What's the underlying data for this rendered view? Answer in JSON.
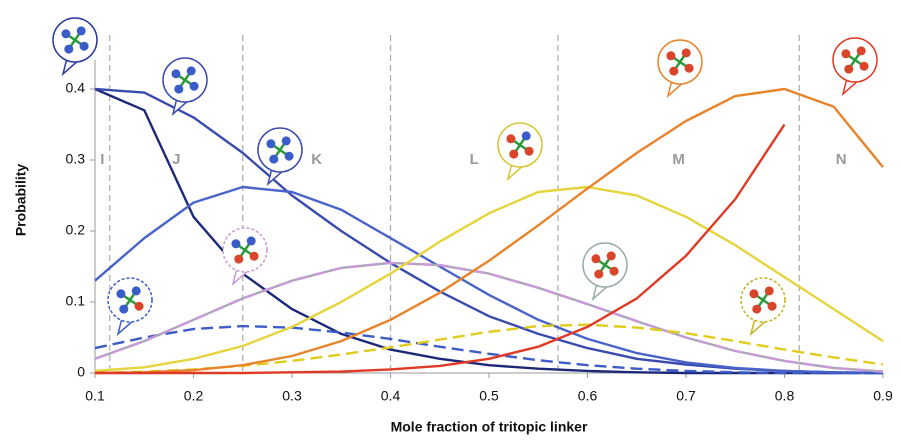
{
  "chart_data": {
    "type": "line",
    "x_label": "Mole fraction of tritopic linker",
    "y_label": "Probability",
    "x": [
      0.1,
      0.15,
      0.2,
      0.25,
      0.3,
      0.35,
      0.4,
      0.45,
      0.5,
      0.55,
      0.6,
      0.65,
      0.7,
      0.75,
      0.8,
      0.85,
      0.9
    ],
    "xlim": [
      0.1,
      0.9
    ],
    "ylim": [
      0,
      0.45
    ],
    "xticks": [
      0.1,
      0.2,
      0.3,
      0.4,
      0.5,
      0.6,
      0.7,
      0.8,
      0.9
    ],
    "yticks": [
      0,
      0.1,
      0.2,
      0.3,
      0.4
    ],
    "regions": [
      "I",
      "J",
      "K",
      "L",
      "M",
      "N"
    ],
    "boundaries": [
      0.115,
      0.25,
      0.4,
      0.57,
      0.815
    ],
    "series": [
      {
        "color": "#1e2878",
        "values": [
          0.4,
          0.37,
          0.22,
          0.14,
          0.09,
          0.055,
          0.033,
          0.02,
          0.011,
          0.006,
          0.003,
          0.001,
          0,
          0,
          0,
          0,
          0
        ]
      },
      {
        "color": "#3a4bae",
        "values": [
          0.4,
          0.395,
          0.36,
          0.31,
          0.25,
          0.2,
          0.155,
          0.115,
          0.08,
          0.055,
          0.035,
          0.02,
          0.012,
          0.006,
          0.003,
          0.001,
          0
        ]
      },
      {
        "color": "#4a63c8",
        "values": [
          0.13,
          0.19,
          0.24,
          0.262,
          0.255,
          0.23,
          0.19,
          0.15,
          0.11,
          0.075,
          0.048,
          0.028,
          0.015,
          0.007,
          0.003,
          0.001,
          0
        ]
      },
      {
        "color": "#3c5cc8",
        "dash": true,
        "values": [
          0.035,
          0.05,
          0.062,
          0.066,
          0.064,
          0.057,
          0.048,
          0.037,
          0.027,
          0.018,
          0.011,
          0.006,
          0.003,
          0.001,
          0,
          0,
          0
        ]
      },
      {
        "color": "#a8a8b4",
        "values": [
          0.02,
          0.045,
          0.075,
          0.105,
          0.13,
          0.148,
          0.155,
          0.152,
          0.14,
          0.12,
          0.097,
          0.073,
          0.05,
          0.031,
          0.017,
          0.007,
          0.002
        ]
      },
      {
        "color": "#c89ad8",
        "dash": true,
        "values": [
          0.02,
          0.045,
          0.075,
          0.105,
          0.13,
          0.148,
          0.155,
          0.152,
          0.14,
          0.12,
          0.097,
          0.073,
          0.05,
          0.031,
          0.017,
          0.007,
          0.002
        ]
      },
      {
        "color": "#e6d43c",
        "values": [
          0.003,
          0.008,
          0.02,
          0.038,
          0.065,
          0.1,
          0.14,
          0.185,
          0.225,
          0.255,
          0.262,
          0.25,
          0.22,
          0.18,
          0.135,
          0.09,
          0.045
        ]
      },
      {
        "color": "#e0cc1c",
        "dash": true,
        "values": [
          0,
          0.002,
          0.005,
          0.01,
          0.017,
          0.026,
          0.036,
          0.047,
          0.058,
          0.066,
          0.068,
          0.064,
          0.056,
          0.045,
          0.033,
          0.022,
          0.012
        ]
      },
      {
        "color": "#e8832a",
        "values": [
          0,
          0.001,
          0.004,
          0.011,
          0.024,
          0.045,
          0.075,
          0.113,
          0.158,
          0.208,
          0.26,
          0.31,
          0.355,
          0.39,
          0.4,
          0.375,
          0.29
        ]
      },
      {
        "color": "#e03a26",
        "values": [
          0,
          0,
          0,
          0,
          0.001,
          0.002,
          0.005,
          0.01,
          0.02,
          0.037,
          0.065,
          0.105,
          0.165,
          0.245,
          0.35,
          null,
          null
        ]
      }
    ]
  }
}
